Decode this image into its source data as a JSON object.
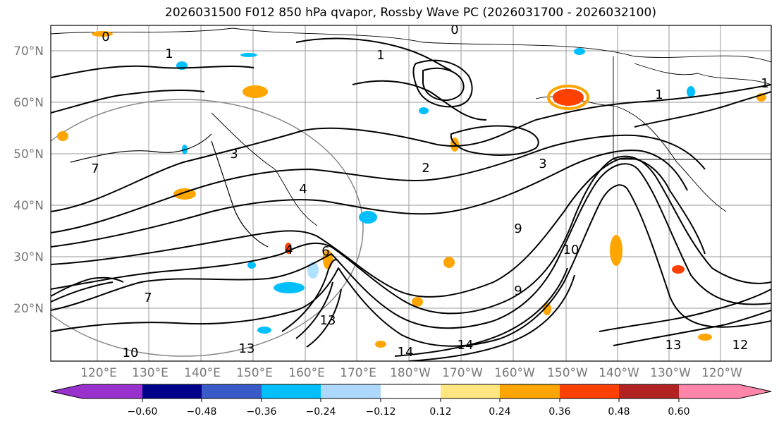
{
  "title": "2026031500 F012 850 hPa qvapor, Rossby Wave PC (2026031700 - 2026032100)",
  "map": {
    "lat_labels": [
      "20°N",
      "30°N",
      "40°N",
      "50°N",
      "60°N",
      "70°N"
    ],
    "lon_labels": [
      "120°E",
      "130°E",
      "140°E",
      "150°E",
      "160°E",
      "170°E",
      "180°W",
      "170°W",
      "160°W",
      "150°W",
      "140°W",
      "130°W",
      "120°W"
    ],
    "contour_labels": [
      "0",
      "0",
      "1",
      "1",
      "1",
      "1",
      "2",
      "3",
      "3",
      "4",
      "4",
      "6",
      "7",
      "7",
      "9",
      "9",
      "10",
      "10",
      "12",
      "13",
      "13",
      "13",
      "14",
      "14"
    ],
    "colors": {
      "grid": "#9a9a9a",
      "coast": "#000000",
      "positive_small": "#ffe680",
      "positive_mid": "#ffa500",
      "positive_high": "#ff4000",
      "negative_small": "#aee0ff",
      "negative_mid": "#00bfff",
      "ellipse": "#888888"
    }
  },
  "colorbar": {
    "ticks": [
      "−0.60",
      "−0.48",
      "−0.36",
      "−0.24",
      "−0.12",
      "0.12",
      "0.24",
      "0.36",
      "0.48",
      "0.60"
    ],
    "colors": [
      "#9932cc",
      "#00008b",
      "#3a5bc7",
      "#00bfff",
      "#add8fb",
      "#ffffff",
      "#ffe680",
      "#ffa500",
      "#ff4000",
      "#b22222",
      "#ff85aa"
    ]
  }
}
